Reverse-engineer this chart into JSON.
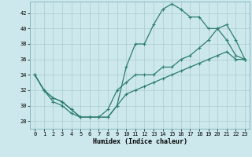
{
  "xlabel": "Humidex (Indice chaleur)",
  "bg_color": "#cce8ec",
  "grid_color": "#aacccc",
  "line_color": "#2d7d6e",
  "xlim": [
    -0.5,
    23.5
  ],
  "ylim": [
    27,
    43.5
  ],
  "yticks": [
    28,
    30,
    32,
    34,
    36,
    38,
    40,
    42
  ],
  "xticks": [
    0,
    1,
    2,
    3,
    4,
    5,
    6,
    7,
    8,
    9,
    10,
    11,
    12,
    13,
    14,
    15,
    16,
    17,
    18,
    19,
    20,
    21,
    22,
    23
  ],
  "curve_top_x": [
    0,
    1,
    2,
    3,
    4,
    5,
    6,
    7,
    8,
    9,
    10,
    11,
    12,
    13,
    14,
    15,
    16,
    17,
    18,
    19,
    20,
    21,
    22,
    23
  ],
  "curve_top_y": [
    34,
    32,
    30.5,
    30,
    29,
    28.5,
    28.5,
    28.5,
    28.5,
    30,
    35,
    38,
    38,
    40.5,
    42.5,
    43.2,
    42.5,
    41.5,
    41.5,
    40,
    40,
    38.5,
    36.5,
    36
  ],
  "curve_mid_x": [
    0,
    1,
    2,
    3,
    4,
    5,
    6,
    7,
    8,
    9,
    10,
    11,
    12,
    13,
    14,
    15,
    16,
    17,
    18,
    19,
    20,
    21,
    22,
    23
  ],
  "curve_mid_y": [
    34,
    32,
    31,
    30.5,
    29.5,
    28.5,
    28.5,
    28.5,
    29.5,
    32,
    33,
    34,
    34,
    34,
    35,
    35,
    36,
    36.5,
    37.5,
    38.5,
    40,
    40.5,
    38.5,
    36
  ],
  "curve_bot_x": [
    0,
    1,
    2,
    3,
    4,
    5,
    6,
    7,
    8,
    9,
    10,
    11,
    12,
    13,
    14,
    15,
    16,
    17,
    18,
    19,
    20,
    21,
    22,
    23
  ],
  "curve_bot_y": [
    34,
    32,
    31,
    30.5,
    29.5,
    28.5,
    28.5,
    28.5,
    28.5,
    30,
    31.5,
    32,
    32.5,
    33,
    33.5,
    34,
    34.5,
    35,
    35.5,
    36,
    36.5,
    37,
    36,
    36
  ],
  "marker": "+",
  "markersize": 3,
  "linewidth": 0.9
}
